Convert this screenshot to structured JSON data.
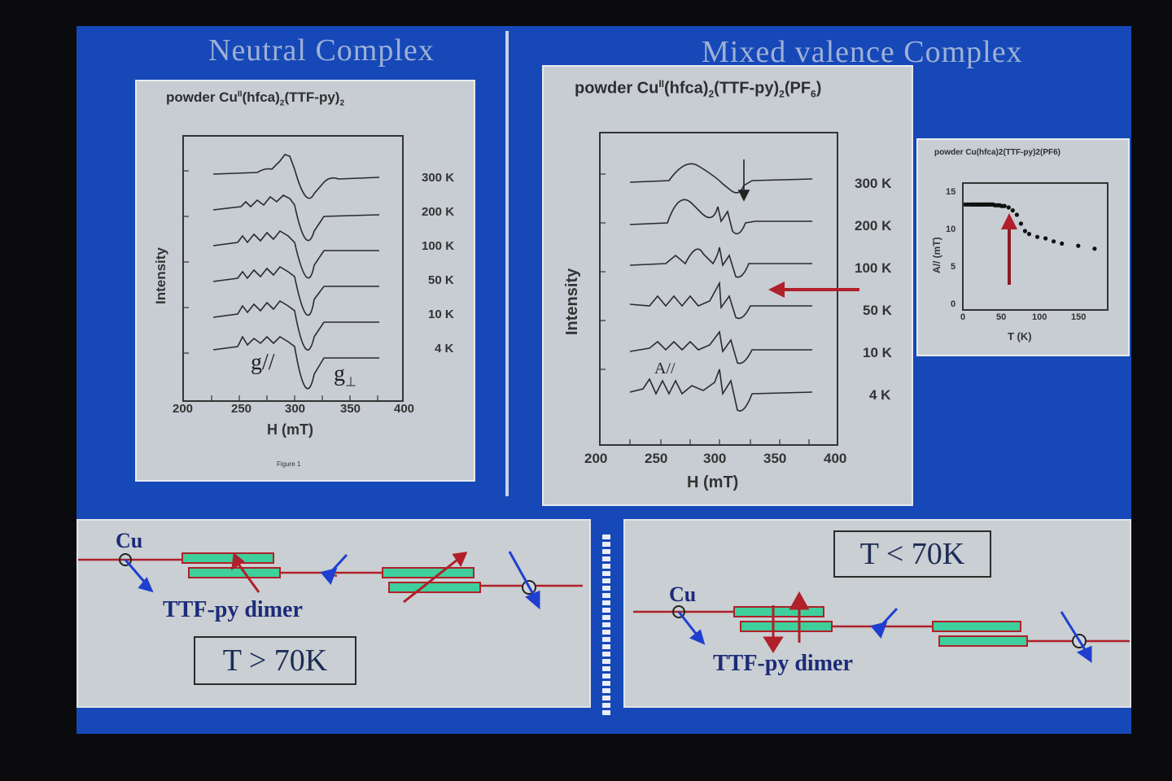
{
  "headings": {
    "left": "Neutral Complex",
    "right": "Mixed valence Complex"
  },
  "panel_neutral": {
    "title_prefix": "powder Cu",
    "title_sup": "II",
    "title_body": "(hfca)",
    "title_sub1": "2",
    "title_ligand": "(TTF-py)",
    "title_sub2": "2",
    "temperatures": [
      "300 K",
      "200 K",
      "100 K",
      "50 K",
      "10 K",
      "4 K"
    ],
    "x_ticks": [
      "200",
      "250",
      "300",
      "350",
      "400"
    ],
    "xlabel": "H (mT)",
    "ylabel": "Intensity",
    "g_parallel": "g//",
    "g_perp": "g",
    "g_perp_sub": "⊥",
    "caption": "Figure 1"
  },
  "panel_mixed": {
    "title_prefix": "powder Cu",
    "title_sup": "II",
    "title_body": "(hfca)",
    "title_sub1": "2",
    "title_ligand": "(TTF-py)",
    "title_sub2": "2",
    "title_salt": "(PF",
    "title_sub3": "6",
    "title_end": ")",
    "temperatures": [
      "300 K",
      "200 K",
      "100 K",
      "50 K",
      "10 K",
      "4 K"
    ],
    "x_ticks": [
      "200",
      "250",
      "300",
      "350",
      "400"
    ],
    "xlabel": "H (mT)",
    "ylabel": "Intensity",
    "a_label": "A//"
  },
  "inset": {
    "title": "powder Cu(hfca)2(TTF-py)2(PF6)",
    "ylabel": "A// (mT)",
    "xlabel": "T (K)",
    "x_ticks": [
      "0",
      "50",
      "100",
      "150"
    ],
    "y_ticks": [
      "0",
      "5",
      "10",
      "15"
    ],
    "chart_data": {
      "type": "scatter",
      "x": [
        2,
        5,
        8,
        10,
        12,
        14,
        16,
        18,
        20,
        22,
        24,
        26,
        28,
        30,
        32,
        34,
        36,
        38,
        40,
        42,
        44,
        46,
        48,
        50,
        55,
        60,
        65,
        70,
        75,
        80,
        90,
        100,
        110,
        120,
        140,
        160
      ],
      "y": [
        14.2,
        14.2,
        14.2,
        14.2,
        14.2,
        14.2,
        14.2,
        14.2,
        14.2,
        14.2,
        14.2,
        14.2,
        14.2,
        14.2,
        14.2,
        14.2,
        14.2,
        14.1,
        14.1,
        14.1,
        14.1,
        14.0,
        14.0,
        14.0,
        13.8,
        13.4,
        12.8,
        11.6,
        10.6,
        10.2,
        9.8,
        9.6,
        9.2,
        8.9,
        8.6,
        8.2
      ],
      "xlim": [
        0,
        175
      ],
      "ylim": [
        0,
        17
      ],
      "xlabel": "T (K)",
      "ylabel": "A// (mT)",
      "title": "powder Cu(hfca)2(TTF-py)2(PF6)"
    }
  },
  "bottom_left": {
    "cu_label": "Cu",
    "dimer_label": "TTF-py dimer",
    "temp_label": "T > 70K"
  },
  "bottom_right": {
    "cu_label": "Cu",
    "dimer_label": "TTF-py dimer",
    "temp_label": "T < 70K"
  },
  "colors": {
    "slide_bg": "#1648b8",
    "panel_bg": "#c7cdd2",
    "chain_red": "#b0202a",
    "dimer_green": "#3fcf9c",
    "spin_blue": "#1f3fd0",
    "arrow_red": "#b01f2a"
  }
}
